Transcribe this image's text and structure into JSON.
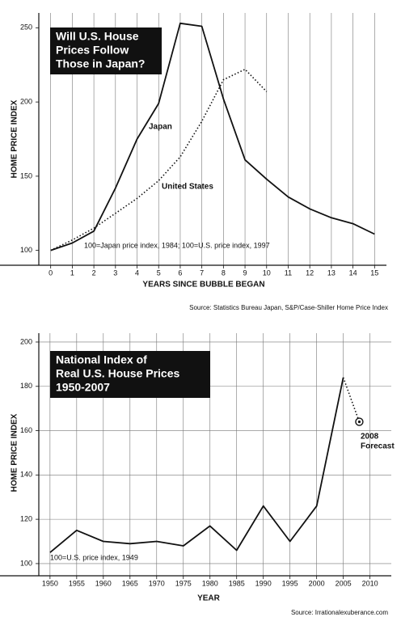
{
  "chart_data": [
    {
      "type": "line",
      "title_lines": [
        "Will U.S. House",
        "Prices Follow",
        "Those in Japan?"
      ],
      "x_label": "YEARS SINCE BUBBLE BEGAN",
      "y_label": "HOME PRICE INDEX",
      "source": "Source: Statistics Bureau Japan, S&P/Case-Shiller Home Price Index",
      "annotations": [
        {
          "text": "Japan"
        },
        {
          "text": "United States"
        },
        {
          "text": "100=Japan price index, 1984; 100=U.S. price index, 1997"
        }
      ],
      "x": [
        0,
        1,
        2,
        3,
        4,
        5,
        6,
        7,
        8,
        9,
        10,
        11,
        12,
        13,
        14,
        15
      ],
      "series": [
        {
          "color": "#111111",
          "style": "solid",
          "values": [
            100,
            105,
            113,
            142,
            175,
            199,
            253,
            251,
            202,
            161,
            148,
            136,
            128,
            122,
            118,
            111
          ]
        },
        {
          "color": "#111111",
          "style": "dotted",
          "values": [
            100,
            107,
            115,
            125,
            135,
            147,
            163,
            187,
            215,
            222,
            207,
            null,
            null,
            null,
            null,
            null
          ]
        }
      ],
      "xlim": [
        -0.55,
        15.55
      ],
      "xticks": [
        0,
        1,
        2,
        3,
        4,
        5,
        6,
        7,
        8,
        9,
        10,
        11,
        12,
        13,
        14,
        15
      ],
      "ylim": [
        90,
        260
      ],
      "yticks": [
        100,
        150,
        200,
        250
      ],
      "grid": "x"
    },
    {
      "type": "line",
      "title_lines": [
        "National Index of",
        "Real U.S. House Prices",
        "1950-2007"
      ],
      "x_label": "YEAR",
      "y_label": "HOME PRICE INDEX",
      "source": "Source: Irrationalexuberance.com",
      "annotations": [
        {
          "text": "100=U.S. price index, 1949"
        },
        {
          "lines": [
            "2008",
            "Forecast"
          ]
        }
      ],
      "x": [
        1950,
        1955,
        1960,
        1965,
        1970,
        1975,
        1980,
        1985,
        1990,
        1995,
        2000,
        2005,
        2008
      ],
      "series": [
        {
          "color": "#111111",
          "style": "solid",
          "values": [
            105,
            115,
            110,
            109,
            110,
            108,
            117,
            106,
            126,
            110,
            126,
            184,
            null
          ]
        },
        {
          "color": "#111111",
          "style": "dotted",
          "marker_last": "target",
          "values": [
            null,
            null,
            null,
            null,
            null,
            null,
            null,
            null,
            null,
            null,
            null,
            184,
            164
          ]
        }
      ],
      "xlim": [
        1947.9,
        2014
      ],
      "xticks": [
        1950,
        1955,
        1960,
        1965,
        1970,
        1975,
        1980,
        1985,
        1990,
        1995,
        2000,
        2005,
        2010
      ],
      "ylim": [
        94.5,
        204
      ],
      "yticks": [
        100,
        120,
        140,
        160,
        180,
        200
      ],
      "grid": "both"
    }
  ]
}
